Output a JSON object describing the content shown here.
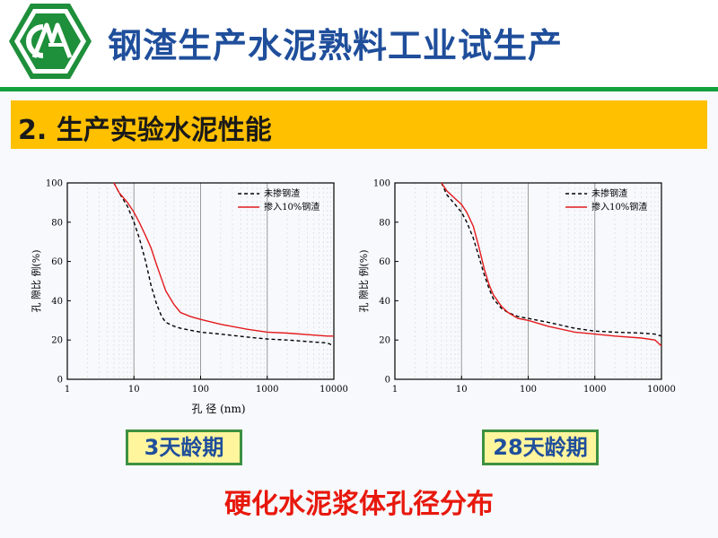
{
  "header": {
    "title": "钢渣生产水泥熟料工业试生产",
    "logo_icon": "company-logo-icon"
  },
  "section": {
    "title": "2. 生产实验水泥性能"
  },
  "chart_data": [
    {
      "type": "line",
      "xlabel": "孔 径 (nm)",
      "ylabel": "孔 隙比 例(%)",
      "x_scale": "log",
      "xlim": [
        1,
        10000
      ],
      "ylim": [
        0,
        100
      ],
      "x_ticks": [
        "1",
        "10",
        "100",
        "1000",
        "10000"
      ],
      "y_ticks": [
        "0",
        "20",
        "40",
        "60",
        "80",
        "100"
      ],
      "grid": "vertical lines at each decade",
      "legend_position": "top-right",
      "series": [
        {
          "name": "未掺钢渣",
          "style": "dashed",
          "color": "#000000",
          "x": [
            5,
            6,
            8,
            10,
            12,
            15,
            18,
            22,
            26,
            30,
            40,
            50,
            70,
            100,
            200,
            500,
            1000,
            2000,
            5000,
            8000,
            10000
          ],
          "y": [
            100,
            95,
            88,
            80,
            72,
            60,
            48,
            38,
            32,
            29,
            27,
            26,
            25,
            24,
            23,
            21.5,
            20.5,
            20,
            19,
            18.5,
            17
          ]
        },
        {
          "name": "掺入10%钢渣",
          "style": "solid",
          "color": "#e41a1c",
          "x": [
            5,
            6,
            8,
            10,
            12,
            15,
            18,
            22,
            26,
            30,
            40,
            50,
            70,
            100,
            200,
            500,
            1000,
            2000,
            5000,
            8000,
            10000
          ],
          "y": [
            100,
            95,
            90,
            85,
            80,
            73,
            67,
            58,
            51,
            45,
            38,
            34,
            32,
            30.5,
            28,
            25.5,
            24,
            23.5,
            22.5,
            22,
            22
          ]
        }
      ]
    },
    {
      "type": "line",
      "xlabel": "",
      "ylabel": "孔 隙比 例(%)",
      "x_scale": "log",
      "xlim": [
        1,
        10000
      ],
      "ylim": [
        0,
        100
      ],
      "x_ticks": [
        "1",
        "10",
        "100",
        "1000",
        "10000"
      ],
      "y_ticks": [
        "0",
        "20",
        "40",
        "60",
        "80",
        "100"
      ],
      "grid": "vertical lines at each decade",
      "legend_position": "top-right",
      "series": [
        {
          "name": "未掺钢渣",
          "style": "dashed",
          "color": "#000000",
          "x": [
            5,
            6,
            8,
            10,
            12,
            15,
            18,
            22,
            26,
            30,
            40,
            50,
            70,
            100,
            200,
            500,
            1000,
            2000,
            5000,
            8000,
            10000
          ],
          "y": [
            100,
            94,
            89,
            85,
            80,
            72,
            63,
            53,
            46,
            41,
            36,
            34,
            32,
            31,
            29,
            26,
            24.5,
            24,
            23.5,
            23,
            22
          ]
        },
        {
          "name": "掺入10%钢渣",
          "style": "solid",
          "color": "#e41a1c",
          "x": [
            5,
            6,
            8,
            10,
            12,
            15,
            18,
            22,
            26,
            30,
            40,
            50,
            70,
            100,
            200,
            500,
            1000,
            2000,
            5000,
            8000,
            10000
          ],
          "y": [
            100,
            96,
            92,
            89,
            85,
            78,
            68,
            56,
            48,
            43,
            37,
            34,
            31,
            30,
            27,
            24,
            23,
            22,
            21,
            20,
            17
          ]
        }
      ]
    }
  ],
  "labels": {
    "age_3d": "3天龄期",
    "age_28d": "28天龄期",
    "caption": "硬化水泥浆体孔径分布"
  },
  "colors": {
    "title_blue": "#1f4e9b",
    "rule_green": "#12a13d",
    "section_yellow": "#ffc000",
    "caption_red": "#e8180c"
  }
}
